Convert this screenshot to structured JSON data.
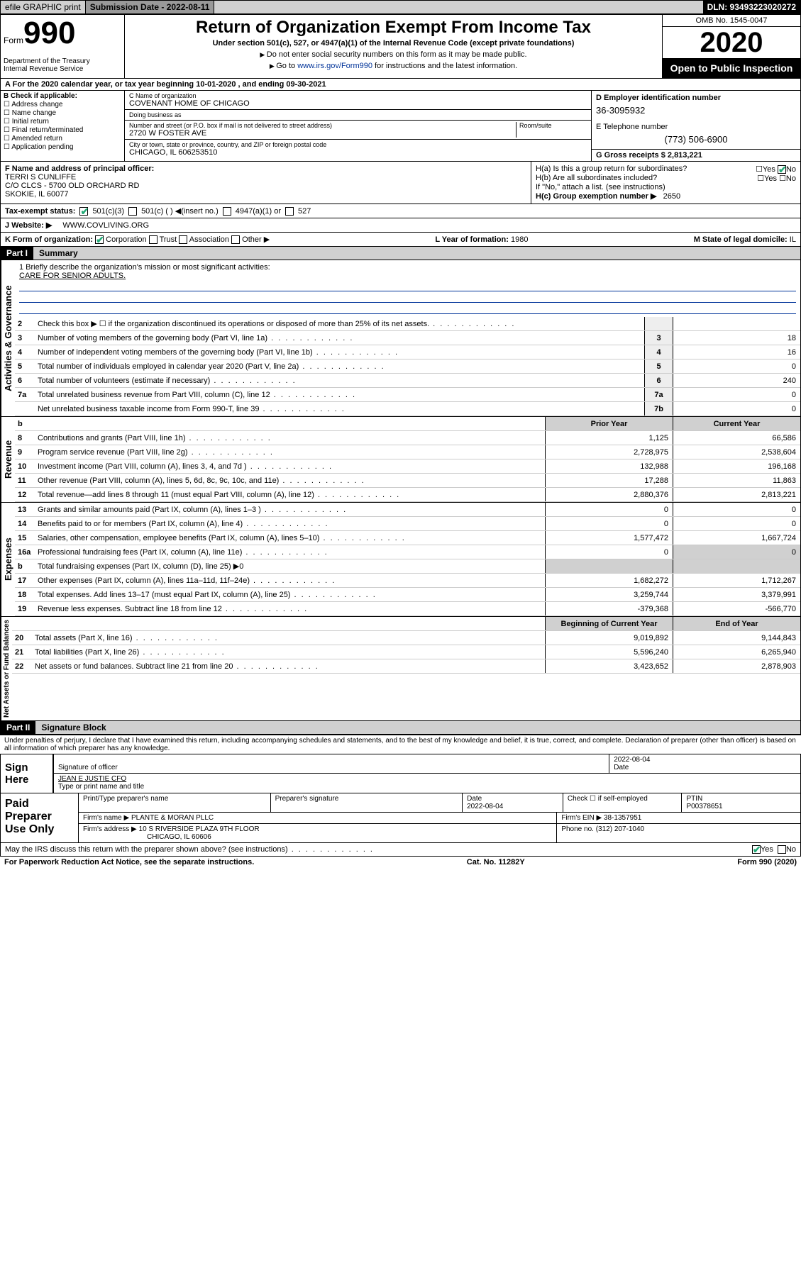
{
  "topbar": {
    "efile": "efile GRAPHIC print",
    "sub_label": "Submission Date - 2022-08-11",
    "dln": "DLN: 93493223020272"
  },
  "header": {
    "form_word": "Form",
    "form_num": "990",
    "dept": "Department of the Treasury\nInternal Revenue Service",
    "title": "Return of Organization Exempt From Income Tax",
    "subtitle": "Under section 501(c), 527, or 4947(a)(1) of the Internal Revenue Code (except private foundations)",
    "note1": "Do not enter social security numbers on this form as it may be made public.",
    "note2_pre": "Go to ",
    "note2_link": "www.irs.gov/Form990",
    "note2_post": " for instructions and the latest information.",
    "omb": "OMB No. 1545-0047",
    "year": "2020",
    "inspect": "Open to Public Inspection"
  },
  "row_a": "For the 2020 calendar year, or tax year beginning 10-01-2020    , and ending 09-30-2021",
  "col_b": {
    "hdr": "B Check if applicable:",
    "items": [
      "Address change",
      "Name change",
      "Initial return",
      "Final return/terminated",
      "Amended return",
      "Application pending"
    ]
  },
  "col_c": {
    "name_lbl": "C Name of organization",
    "name": "COVENANT HOME OF CHICAGO",
    "dba_lbl": "Doing business as",
    "dba": "",
    "addr_lbl": "Number and street (or P.O. box if mail is not delivered to street address)",
    "room_lbl": "Room/suite",
    "addr": "2720 W FOSTER AVE",
    "city_lbl": "City or town, state or province, country, and ZIP or foreign postal code",
    "city": "CHICAGO, IL  606253510"
  },
  "col_d": {
    "ein_lbl": "D Employer identification number",
    "ein": "36-3095932",
    "tel_lbl": "E Telephone number",
    "tel": "(773) 506-6900",
    "gr_lbl": "G Gross receipts $",
    "gr": "2,813,221"
  },
  "f": {
    "lbl": "F  Name and address of principal officer:",
    "name": "TERRI S CUNLIFFE",
    "addr1": "C/O CLCS - 5700 OLD ORCHARD RD",
    "addr2": "SKOKIE, IL  60077"
  },
  "h": {
    "a": "H(a)  Is this a group return for subordinates?",
    "b": "H(b)  Are all subordinates included?",
    "bnote": "If \"No,\" attach a list. (see instructions)",
    "c_lbl": "H(c)  Group exemption number ▶",
    "c_val": "2650"
  },
  "i": {
    "lbl": "Tax-exempt status:",
    "opt1": "501(c)(3)",
    "opt2": "501(c) (  ) ◀(insert no.)",
    "opt3": "4947(a)(1) or",
    "opt4": "527"
  },
  "j": {
    "lbl": "J   Website: ▶",
    "val": "WWW.COVLIVING.ORG"
  },
  "k": {
    "lbl": "K Form of organization:",
    "opts": [
      "Corporation",
      "Trust",
      "Association",
      "Other ▶"
    ],
    "l_lbl": "L Year of formation:",
    "l_val": "1980",
    "m_lbl": "M State of legal domicile:",
    "m_val": "IL"
  },
  "part1": {
    "num": "Part I",
    "title": "Summary"
  },
  "mission": {
    "q1": "1   Briefly describe the organization's mission or most significant activities:",
    "ans": "CARE FOR SENIOR ADULTS."
  },
  "gov_label": "Activities & Governance",
  "gov_rows": [
    {
      "n": "2",
      "d": "Check this box ▶ ☐  if the organization discontinued its operations or disposed of more than 25% of its net assets.",
      "b": "",
      "v": ""
    },
    {
      "n": "3",
      "d": "Number of voting members of the governing body (Part VI, line 1a)",
      "b": "3",
      "v": "18"
    },
    {
      "n": "4",
      "d": "Number of independent voting members of the governing body (Part VI, line 1b)",
      "b": "4",
      "v": "16"
    },
    {
      "n": "5",
      "d": "Total number of individuals employed in calendar year 2020 (Part V, line 2a)",
      "b": "5",
      "v": "0"
    },
    {
      "n": "6",
      "d": "Total number of volunteers (estimate if necessary)",
      "b": "6",
      "v": "240"
    },
    {
      "n": "7a",
      "d": "Total unrelated business revenue from Part VIII, column (C), line 12",
      "b": "7a",
      "v": "0"
    },
    {
      "n": "",
      "d": "Net unrelated business taxable income from Form 990-T, line 39",
      "b": "7b",
      "v": "0"
    }
  ],
  "rev_label": "Revenue",
  "rev_hdr": {
    "b": "b",
    "py": "Prior Year",
    "cy": "Current Year"
  },
  "rev_rows": [
    {
      "n": "8",
      "d": "Contributions and grants (Part VIII, line 1h)",
      "py": "1,125",
      "cy": "66,586"
    },
    {
      "n": "9",
      "d": "Program service revenue (Part VIII, line 2g)",
      "py": "2,728,975",
      "cy": "2,538,604"
    },
    {
      "n": "10",
      "d": "Investment income (Part VIII, column (A), lines 3, 4, and 7d )",
      "py": "132,988",
      "cy": "196,168"
    },
    {
      "n": "11",
      "d": "Other revenue (Part VIII, column (A), lines 5, 6d, 8c, 9c, 10c, and 11e)",
      "py": "17,288",
      "cy": "11,863"
    },
    {
      "n": "12",
      "d": "Total revenue—add lines 8 through 11 (must equal Part VIII, column (A), line 12)",
      "py": "2,880,376",
      "cy": "2,813,221"
    }
  ],
  "exp_label": "Expenses",
  "exp_rows": [
    {
      "n": "13",
      "d": "Grants and similar amounts paid (Part IX, column (A), lines 1–3 )",
      "py": "0",
      "cy": "0"
    },
    {
      "n": "14",
      "d": "Benefits paid to or for members (Part IX, column (A), line 4)",
      "py": "0",
      "cy": "0"
    },
    {
      "n": "15",
      "d": "Salaries, other compensation, employee benefits (Part IX, column (A), lines 5–10)",
      "py": "1,577,472",
      "cy": "1,667,724"
    },
    {
      "n": "16a",
      "d": "Professional fundraising fees (Part IX, column (A), line 11e)",
      "py": "0",
      "cy": "0",
      "shade": true
    },
    {
      "n": "b",
      "d": "Total fundraising expenses (Part IX, column (D), line 25) ▶0",
      "py": "",
      "cy": "",
      "shade": true,
      "noval": true
    },
    {
      "n": "17",
      "d": "Other expenses (Part IX, column (A), lines 11a–11d, 11f–24e)",
      "py": "1,682,272",
      "cy": "1,712,267"
    },
    {
      "n": "18",
      "d": "Total expenses. Add lines 13–17 (must equal Part IX, column (A), line 25)",
      "py": "3,259,744",
      "cy": "3,379,991"
    },
    {
      "n": "19",
      "d": "Revenue less expenses. Subtract line 18 from line 12",
      "py": "-379,368",
      "cy": "-566,770"
    }
  ],
  "na_label": "Net Assets or Fund Balances",
  "na_hdr": {
    "py": "Beginning of Current Year",
    "cy": "End of Year"
  },
  "na_rows": [
    {
      "n": "20",
      "d": "Total assets (Part X, line 16)",
      "py": "9,019,892",
      "cy": "9,144,843"
    },
    {
      "n": "21",
      "d": "Total liabilities (Part X, line 26)",
      "py": "5,596,240",
      "cy": "6,265,940"
    },
    {
      "n": "22",
      "d": "Net assets or fund balances. Subtract line 21 from line 20",
      "py": "3,423,652",
      "cy": "2,878,903"
    }
  ],
  "part2": {
    "num": "Part II",
    "title": "Signature Block"
  },
  "perjury": "Under penalties of perjury, I declare that I have examined this return, including accompanying schedules and statements, and to the best of my knowledge and belief, it is true, correct, and complete. Declaration of preparer (other than officer) is based on all information of which preparer has any knowledge.",
  "sign": {
    "here": "Sign Here",
    "sig_lbl": "Signature of officer",
    "date": "2022-08-04",
    "date_lbl": "Date",
    "name": "JEAN E JUSTIE  CFO",
    "name_lbl": "Type or print name and title"
  },
  "prep": {
    "hdr": "Paid Preparer Use Only",
    "r1": {
      "c1": "Print/Type preparer's name",
      "c2": "Preparer's signature",
      "c3": "Date\n2022-08-04",
      "c4": "Check ☐ if self-employed",
      "c5": "PTIN\nP00378651"
    },
    "r2": {
      "lbl": "Firm's name    ▶",
      "val": "PLANTE & MORAN PLLC",
      "ein_lbl": "Firm's EIN ▶",
      "ein": "38-1357951"
    },
    "r3": {
      "lbl": "Firm's address ▶",
      "val": "10 S RIVERSIDE PLAZA 9TH FLOOR",
      "ph_lbl": "Phone no.",
      "ph": "(312) 207-1040"
    },
    "r3b": "CHICAGO, IL  60606"
  },
  "discuss": "May the IRS discuss this return with the preparer shown above? (see instructions)",
  "footer": {
    "l": "For Paperwork Reduction Act Notice, see the separate instructions.",
    "c": "Cat. No. 11282Y",
    "r": "Form 990 (2020)"
  }
}
